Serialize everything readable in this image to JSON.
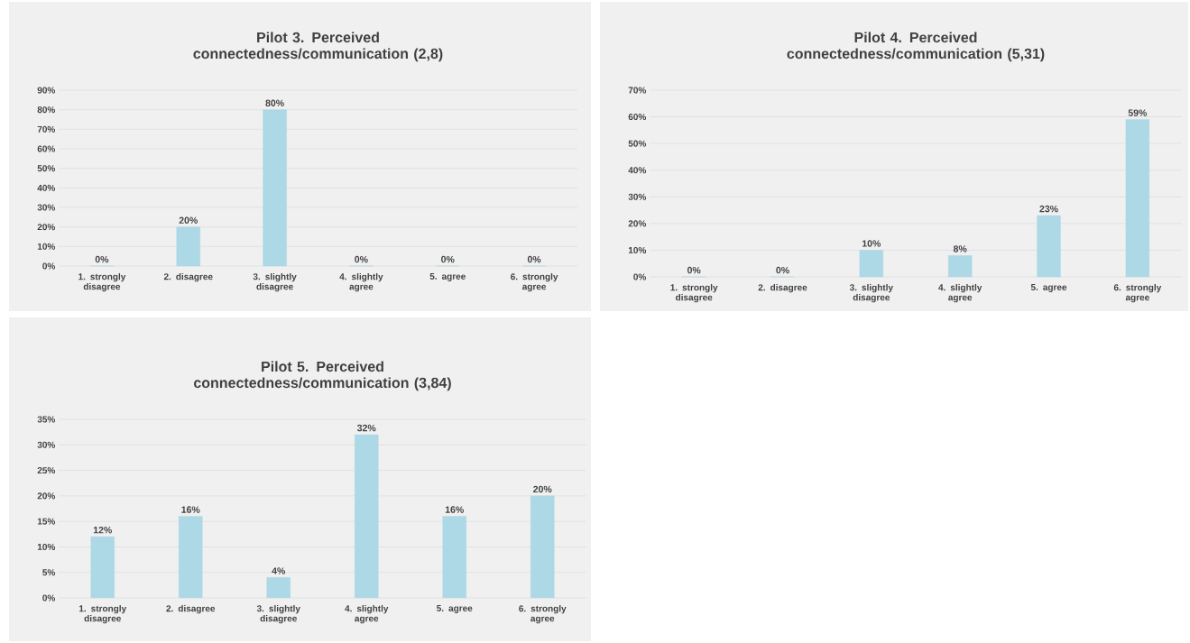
{
  "chart_data": [
    {
      "type": "bar",
      "title": "Pilot 3. Perceived connectedness/communication (2,8)",
      "categories": [
        "1. strongly disagree",
        "2. disagree",
        "3. slightly disagree",
        "4. slightly agree",
        "5. agree",
        "6. strongly agree"
      ],
      "values": [
        0,
        20,
        80,
        0,
        0,
        0
      ],
      "value_labels": [
        "0%",
        "20%",
        "80%",
        "0%",
        "0%",
        "0%"
      ],
      "color": "#add8e6",
      "ylim": [
        0,
        90
      ],
      "yticks": [
        {
          "value": 0,
          "label": "0%"
        },
        {
          "value": 10,
          "label": "10%"
        },
        {
          "value": 20,
          "label": "20%"
        },
        {
          "value": 30,
          "label": "30%"
        },
        {
          "value": 40,
          "label": "40%"
        },
        {
          "value": 50,
          "label": "50%"
        },
        {
          "value": 60,
          "label": "60%"
        },
        {
          "value": 70,
          "label": "70%"
        },
        {
          "value": 80,
          "label": "80%"
        },
        {
          "value": 90,
          "label": "90%"
        }
      ],
      "grid": "y"
    },
    {
      "type": "bar",
      "title": "Pilot 4. Perceived connectedness/communication (5,31)",
      "categories": [
        "1. strongly disagree",
        "2. disagree",
        "3. slightly disagree",
        "4. slightly agree",
        "5. agree",
        "6. strongly agree"
      ],
      "values": [
        0,
        0,
        10,
        8,
        23,
        59
      ],
      "value_labels": [
        "0%",
        "0%",
        "10%",
        "8%",
        "23%",
        "59%"
      ],
      "color": "#add8e6",
      "ylim": [
        0,
        70
      ],
      "yticks": [
        {
          "value": 0,
          "label": "0%"
        },
        {
          "value": 10,
          "label": "10%"
        },
        {
          "value": 20,
          "label": "20%"
        },
        {
          "value": 30,
          "label": "30%"
        },
        {
          "value": 40,
          "label": "40%"
        },
        {
          "value": 50,
          "label": "50%"
        },
        {
          "value": 60,
          "label": "60%"
        },
        {
          "value": 70,
          "label": "70%"
        }
      ],
      "grid": "y"
    },
    {
      "type": "bar",
      "title": "Pilot 5. Perceived connectedness/communication (3,84)",
      "categories": [
        "1. strongly disagree",
        "2. disagree",
        "3. slightly disagree",
        "4. slightly agree",
        "5. agree",
        "6. strongly agree"
      ],
      "values": [
        12,
        16,
        4,
        32,
        16,
        20
      ],
      "value_labels": [
        "12%",
        "16%",
        "4%",
        "32%",
        "16%",
        "20%"
      ],
      "color": "#add8e6",
      "ylim": [
        0,
        35
      ],
      "yticks": [
        {
          "value": 0,
          "label": "0%"
        },
        {
          "value": 5,
          "label": "5%"
        },
        {
          "value": 10,
          "label": "10%"
        },
        {
          "value": 15,
          "label": "15%"
        },
        {
          "value": 20,
          "label": "20%"
        },
        {
          "value": 25,
          "label": "25%"
        },
        {
          "value": 30,
          "label": "30%"
        },
        {
          "value": 35,
          "label": "35%"
        }
      ],
      "grid": "y"
    }
  ]
}
